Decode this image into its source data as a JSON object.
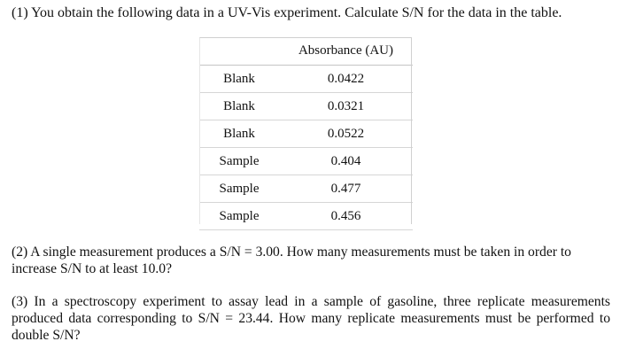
{
  "question1": {
    "text": "(1)  You obtain the following data in a UV-Vis experiment. Calculate S/N for the data in the table."
  },
  "table": {
    "header": {
      "label": "",
      "value": "Absorbance (AU)"
    },
    "rows": [
      {
        "label": "Blank",
        "value": "0.0422"
      },
      {
        "label": "Blank",
        "value": "0.0321"
      },
      {
        "label": "Blank",
        "value": "0.0522"
      },
      {
        "label": "Sample",
        "value": "0.404"
      },
      {
        "label": "Sample",
        "value": "0.477"
      },
      {
        "label": "Sample",
        "value": "0.456"
      }
    ]
  },
  "question2": {
    "text": "(2)  A single measurement produces a S/N = 3.00.  How many measurements must be taken in order to increase S/N to at least 10.0?"
  },
  "question3": {
    "text": "(3)  In a spectroscopy experiment to assay lead in a sample of gasoline, three replicate measurements produced data corresponding to S/N = 23.44.  How many replicate measurements must be performed to double S/N?"
  }
}
